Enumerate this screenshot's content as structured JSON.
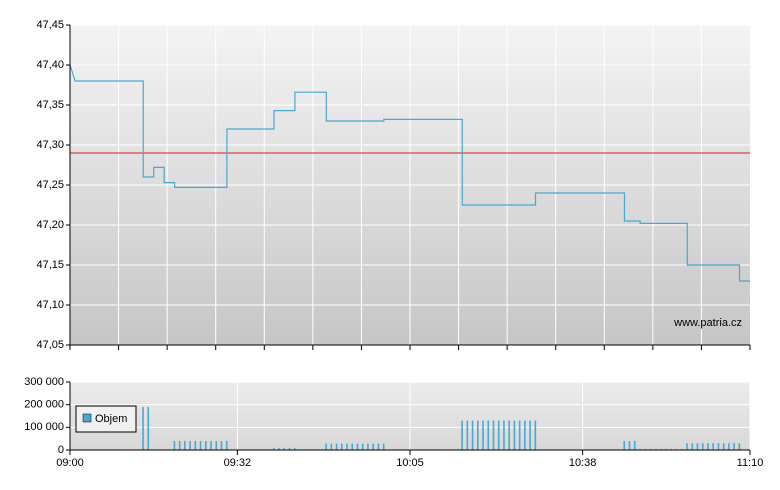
{
  "chart_data": [
    {
      "type": "line",
      "x": [
        "09:00",
        "09:01",
        "09:02",
        "09:14",
        "09:14",
        "09:16",
        "09:16",
        "09:18",
        "09:18",
        "09:20",
        "09:20",
        "09:30",
        "09:30",
        "09:39",
        "09:39",
        "09:43",
        "09:43",
        "09:49",
        "09:49",
        "10:00",
        "10:00",
        "10:15",
        "10:15",
        "10:29",
        "10:29",
        "10:46",
        "10:46",
        "10:49",
        "10:49",
        "10:58",
        "10:58",
        "11:08",
        "11:08",
        "11:10"
      ],
      "values": [
        47.4,
        47.38,
        47.38,
        47.38,
        47.26,
        47.26,
        47.272,
        47.272,
        47.253,
        47.253,
        47.247,
        47.247,
        47.32,
        47.32,
        47.343,
        47.343,
        47.366,
        47.366,
        47.33,
        47.33,
        47.332,
        47.332,
        47.225,
        47.225,
        47.24,
        47.24,
        47.205,
        47.205,
        47.202,
        47.202,
        47.15,
        47.15,
        47.13,
        47.13
      ],
      "color": "#4aa8d0",
      "xlim": [
        "09:00",
        "11:10"
      ],
      "ylim": [
        47.05,
        47.45
      ],
      "yticks": [
        {
          "value": 47.05,
          "label": "47,05"
        },
        {
          "value": 47.1,
          "label": "47,10"
        },
        {
          "value": 47.15,
          "label": "47,15"
        },
        {
          "value": 47.2,
          "label": "47,20"
        },
        {
          "value": 47.25,
          "label": "47,25"
        },
        {
          "value": 47.3,
          "label": "47,30"
        },
        {
          "value": 47.35,
          "label": "47,35"
        },
        {
          "value": 47.4,
          "label": "47,40"
        },
        {
          "value": 47.45,
          "label": "47,45"
        }
      ],
      "reference_line": {
        "value": 47.29,
        "color": "#cc2222"
      },
      "annotation": "www.patria.cz",
      "grid": true
    },
    {
      "type": "bar",
      "x": [
        "09:14",
        "09:15",
        "09:20",
        "09:21",
        "09:22",
        "09:23",
        "09:24",
        "09:25",
        "09:26",
        "09:27",
        "09:28",
        "09:29",
        "09:30",
        "09:39",
        "09:40",
        "09:41",
        "09:42",
        "09:43",
        "09:49",
        "09:50",
        "09:51",
        "09:52",
        "09:53",
        "09:54",
        "09:55",
        "09:56",
        "09:57",
        "09:58",
        "09:59",
        "10:00",
        "10:15",
        "10:16",
        "10:17",
        "10:18",
        "10:19",
        "10:20",
        "10:21",
        "10:22",
        "10:23",
        "10:24",
        "10:25",
        "10:26",
        "10:27",
        "10:28",
        "10:29",
        "10:46",
        "10:47",
        "10:48",
        "10:49",
        "10:50",
        "10:51",
        "10:52",
        "10:53",
        "10:54",
        "10:55",
        "10:56",
        "10:57",
        "10:58",
        "10:59",
        "11:00",
        "11:01",
        "11:02",
        "11:03",
        "11:04",
        "11:05",
        "11:06",
        "11:07",
        "11:08"
      ],
      "series": [
        {
          "name": "Objem",
          "color": "#4aa8d0",
          "values": [
            190000,
            190000,
            40000,
            40000,
            40000,
            40000,
            40000,
            40000,
            40000,
            40000,
            40000,
            40000,
            40000,
            8000,
            8000,
            8000,
            8000,
            8000,
            28000,
            28000,
            28000,
            28000,
            28000,
            28000,
            28000,
            28000,
            28000,
            28000,
            28000,
            28000,
            130000,
            130000,
            130000,
            130000,
            130000,
            130000,
            130000,
            130000,
            130000,
            130000,
            130000,
            130000,
            130000,
            130000,
            130000,
            40000,
            40000,
            40000,
            4000,
            4000,
            4000,
            4000,
            4000,
            4000,
            4000,
            4000,
            4000,
            30000,
            30000,
            30000,
            30000,
            30000,
            30000,
            30000,
            30000,
            30000,
            30000,
            30000
          ]
        }
      ],
      "xlim": [
        "09:00",
        "11:10"
      ],
      "xticks": [
        "09:00",
        "09:32",
        "10:05",
        "10:38",
        "11:10"
      ],
      "ylim": [
        0,
        300000
      ],
      "yticks": [
        0,
        {
          "value": 100000,
          "label": "100 000"
        },
        {
          "value": 200000,
          "label": "200 000"
        },
        {
          "value": 300000,
          "label": "300 000"
        }
      ],
      "grid": true
    }
  ]
}
